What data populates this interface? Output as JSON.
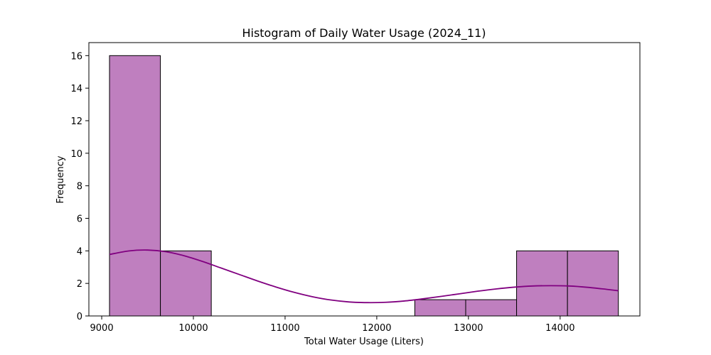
{
  "chart_data": {
    "type": "bar",
    "title": "Histogram of Daily Water Usage (2024_11)",
    "xlabel": "Total Water Usage (Liters)",
    "ylabel": "Frequency",
    "xlim": [
      8860,
      14870
    ],
    "ylim": [
      0,
      16.8
    ],
    "xticks": [
      9000,
      10000,
      11000,
      12000,
      13000,
      14000
    ],
    "yticks": [
      0,
      2,
      4,
      6,
      8,
      10,
      12,
      14,
      16
    ],
    "bins": [
      {
        "start": 9085,
        "end": 9640,
        "count": 16
      },
      {
        "start": 9640,
        "end": 10195,
        "count": 4
      },
      {
        "start": 10195,
        "end": 10750,
        "count": 0
      },
      {
        "start": 10750,
        "end": 11305,
        "count": 0
      },
      {
        "start": 11305,
        "end": 11860,
        "count": 0
      },
      {
        "start": 11860,
        "end": 12415,
        "count": 0
      },
      {
        "start": 12415,
        "end": 12970,
        "count": 1
      },
      {
        "start": 12970,
        "end": 13525,
        "count": 1
      },
      {
        "start": 13525,
        "end": 14080,
        "count": 4
      },
      {
        "start": 14080,
        "end": 14635,
        "count": 4
      }
    ],
    "kde": {
      "x": [
        9085,
        9300,
        9500,
        9700,
        9900,
        10100,
        10300,
        10500,
        10700,
        10900,
        11100,
        11300,
        11500,
        11700,
        11900,
        12100,
        12300,
        12500,
        12700,
        12900,
        13100,
        13300,
        13500,
        13700,
        13900,
        14100,
        14300,
        14500,
        14635
      ],
      "y": [
        3.78,
        4.0,
        4.05,
        3.95,
        3.7,
        3.35,
        2.95,
        2.55,
        2.15,
        1.78,
        1.45,
        1.18,
        0.98,
        0.86,
        0.82,
        0.84,
        0.92,
        1.05,
        1.2,
        1.36,
        1.52,
        1.66,
        1.77,
        1.84,
        1.86,
        1.84,
        1.76,
        1.64,
        1.55
      ]
    },
    "bar_color": "#bf7fbf",
    "bar_edge_color": "#000000",
    "kde_color": "#800080",
    "grid": false,
    "legend": "none"
  }
}
